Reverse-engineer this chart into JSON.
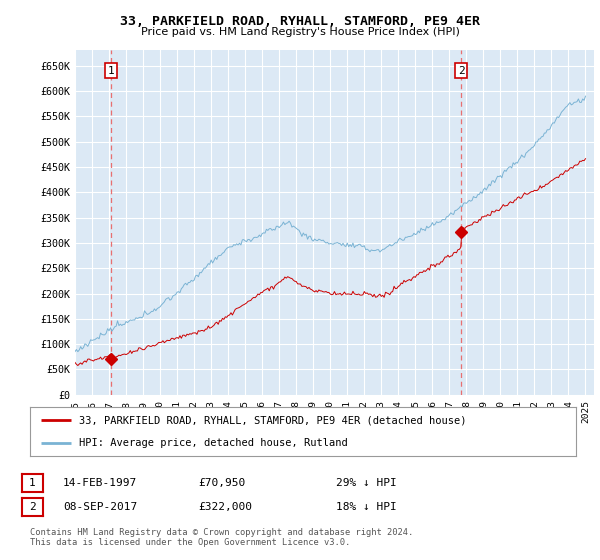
{
  "title": "33, PARKFIELD ROAD, RYHALL, STAMFORD, PE9 4ER",
  "subtitle": "Price paid vs. HM Land Registry's House Price Index (HPI)",
  "ylim": [
    0,
    680000
  ],
  "xlim_start": 1995.0,
  "xlim_end": 2025.5,
  "sale1_x": 1997.12,
  "sale1_y": 70950,
  "sale1_label": "1",
  "sale1_date": "14-FEB-1997",
  "sale1_price": "£70,950",
  "sale1_hpi": "29% ↓ HPI",
  "sale2_x": 2017.69,
  "sale2_y": 322000,
  "sale2_label": "2",
  "sale2_date": "08-SEP-2017",
  "sale2_price": "£322,000",
  "sale2_hpi": "18% ↓ HPI",
  "hpi_color": "#7ab3d4",
  "sale_color": "#cc0000",
  "vline_color": "#e87070",
  "background_color": "#ffffff",
  "chart_bg": "#dce9f5",
  "grid_color": "#ffffff",
  "legend_label_sale": "33, PARKFIELD ROAD, RYHALL, STAMFORD, PE9 4ER (detached house)",
  "legend_label_hpi": "HPI: Average price, detached house, Rutland",
  "footer": "Contains HM Land Registry data © Crown copyright and database right 2024.\nThis data is licensed under the Open Government Licence v3.0."
}
